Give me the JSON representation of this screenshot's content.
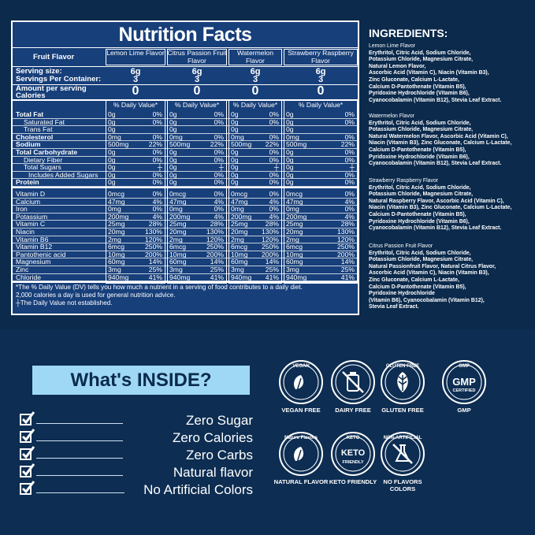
{
  "nutrition": {
    "title": "Nutrition Facts",
    "fruit_flavor_label": "Fruit Flavor",
    "flavors": [
      "Lemon Lime Flavor",
      "Citrus Passion Fruit Flavor",
      "Watermelon Flavor",
      "Strawberry Raspberry Flavor"
    ],
    "serving_size_label": "Serving size:",
    "serving_size": "6g",
    "servings_label": "Servings Per Container:",
    "servings": "3",
    "amount_label": "Amount per serving",
    "calories_label": "Calories",
    "calories": "0",
    "dv_header": "% Daily Value*",
    "macro_rows": [
      {
        "label": "Total Fat",
        "bold": true,
        "indent": 0,
        "amount": "0g",
        "pct": "0%"
      },
      {
        "label": "Saturated Fat",
        "bold": false,
        "indent": 1,
        "amount": "0g",
        "pct": "0%"
      },
      {
        "label": "Trans Fat",
        "bold": false,
        "indent": 1,
        "amount": "0g",
        "pct": ""
      },
      {
        "label": "Cholesterol",
        "bold": true,
        "indent": 0,
        "amount": "0mg",
        "pct": "0%"
      },
      {
        "label": "Sodium",
        "bold": true,
        "indent": 0,
        "amount": "500mg",
        "pct": "22%"
      },
      {
        "label": "Total Carbohydrate",
        "bold": true,
        "indent": 0,
        "amount": "0g",
        "pct": "0%"
      },
      {
        "label": "Dietary Fiber",
        "bold": false,
        "indent": 1,
        "amount": "0g",
        "pct": "0%"
      },
      {
        "label": "Total Sugars",
        "bold": false,
        "indent": 1,
        "amount": "0g",
        "pct": "┼"
      },
      {
        "label": "Includes Added Sugars",
        "bold": false,
        "indent": 2,
        "amount": "0g",
        "pct": "0%"
      },
      {
        "label": "Protein",
        "bold": true,
        "indent": 0,
        "amount": "0g",
        "pct": "0%"
      }
    ],
    "micro_rows": [
      {
        "label": "Vitamin D",
        "amount": "0mcg",
        "pct": "0%"
      },
      {
        "label": "Calcium",
        "amount": "47mg",
        "pct": "4%"
      },
      {
        "label": "Iron",
        "amount": "0mg",
        "pct": "0%"
      },
      {
        "label": "Potassium",
        "amount": "200mg",
        "pct": "4%"
      },
      {
        "label": "Vitamin C",
        "amount": "25mg",
        "pct": "28%"
      },
      {
        "label": "Niacin",
        "amount": "20mg",
        "pct": "130%"
      },
      {
        "label": "Vitamin B6",
        "amount": "2mg",
        "pct": "120%"
      },
      {
        "label": "Vitamin B12",
        "amount": "6mcg",
        "pct": "250%"
      },
      {
        "label": "Pantothenic acid",
        "amount": "10mg",
        "pct": "200%"
      },
      {
        "label": "Magnesium",
        "amount": "60mg",
        "pct": "14%"
      },
      {
        "label": "Zinc",
        "amount": "3mg",
        "pct": "25%"
      },
      {
        "label": "Chloride",
        "amount": "940mg",
        "pct": "41%"
      }
    ],
    "footnote_1": "*The % Daily Value (DV) tells you how much a nutrient in a serving of food contributes to a daily diet.",
    "footnote_2": "2,000 calories a day is used for general nutrition advice.",
    "footnote_3": "┼The Daily Value not established."
  },
  "ingredients": {
    "title": "INGREDIENTS:",
    "blocks": [
      {
        "name": "Lemon Lime Flavor",
        "lines": [
          "Erythritol, Citric Acid, Sodium Chloride,",
          "Potassium Chloride, Magnesium Citrate,",
          "Natural Lemon Flavor,",
          "Ascorbic Acid (Vitamin C), Niacin (Vitamin B3),",
          "Zinc Gluconate, Calcium L-Lactate,",
          "Calcium D-Pantothenate (Vitamin B5),",
          "Pyridoxine Hydrochloride (Vitamin B6),",
          "Cyanocobalamin (Vitamin B12), Stevia Leaf Extract."
        ]
      },
      {
        "name": "Watermelon Flavor",
        "lines": [
          "Erythritol, Citric Acid, Sodium Chloride,",
          "Potassium Chloride, Magnesium Citrate,",
          "Natural Watermelon Flavor, Ascorbic Acid (Vitamin C),",
          "Niacin (Vitamin B3), Zinc Gluconate, Calcium L-Lactate,",
          "Calcium D-Pantothenate (Vitamin B5),",
          "Pyridoxine Hydrochloride (Vitamin B6),",
          "Cyanocobalamin (Vitamin B12), Stevia Leaf Extract."
        ]
      },
      {
        "name": "Strawberry Raspberry Flavor",
        "lines": [
          "Erythritol, Citric Acid, Sodium Chloride,",
          "Potassium Chloride, Magnesium Citrate,",
          "Natural Raspberry Flavor, Ascorbic Acid (Vitamin C),",
          "Niacin (Vitamin B3), Zinc Gluconate, Calcium L-Lactate,",
          "Calcium D-Pantothenate (Vitamin B5),",
          "Pyridoxine Hydrochloride (Vitamin B6),",
          "Cyanocobalamin (Vitamin B12), Stevia Leaf Extract."
        ]
      },
      {
        "name": "Citrus Passion Fruit Flavor",
        "lines": [
          "Erythritol, Citric Acid, Sodium Chloride,",
          "Potassium Chloride, Magnesium Citrate,",
          "Natural Passionfruit Flavor, Natural Citrus Flavor,",
          "Ascorbic Acid (Vitamin C), Niacin (Vitamin B3),",
          "Zinc Gluconate, Calcium L-Lactate,",
          "Calcium D-Pantothenate (Vitamin B5),",
          "Pyridoxine Hydrochloride",
          "(Vitamin B6), Cyanocobalamin (Vitamin B12),",
          "Stevia Leaf Extract."
        ]
      }
    ]
  },
  "inside": {
    "title": "What's INSIDE?",
    "claims": [
      "Zero Sugar",
      "Zero Calories",
      "Zero Carbs",
      "Natural flavor",
      "No Artificial Colors"
    ]
  },
  "badges": [
    {
      "ring_text": "VEGAN",
      "label": "VEGAN FREE",
      "icon": "leaf-icon"
    },
    {
      "ring_text": "",
      "label": "DAIRY FREE",
      "icon": "milk-bottle-crossed-icon"
    },
    {
      "ring_text": "GLUTEN FREE",
      "label": "GLUTEN FREE",
      "icon": "wheat-icon"
    },
    {
      "ring_text": "GMP",
      "sub_text": "CERTIFIED",
      "label": "GMP",
      "icon": "gmp-seal-icon"
    },
    {
      "ring_text": "Nature Flavors",
      "label": "NATURAL FLAVOR",
      "icon": "leaf-icon"
    },
    {
      "ring_text": "KETO",
      "sub_text": "FRIENDLY",
      "label": "KETO FRIENDLY",
      "icon": "keto-icon"
    },
    {
      "ring_text": "NON-ARTIFICIAL",
      "label": "NO FLAVORS COLORS",
      "icon": "flask-crossed-icon"
    }
  ],
  "colors": {
    "background": "#0b2a4c",
    "panel": "#173f7a",
    "inside_box": "#9fd8f4",
    "text": "#ffffff"
  }
}
